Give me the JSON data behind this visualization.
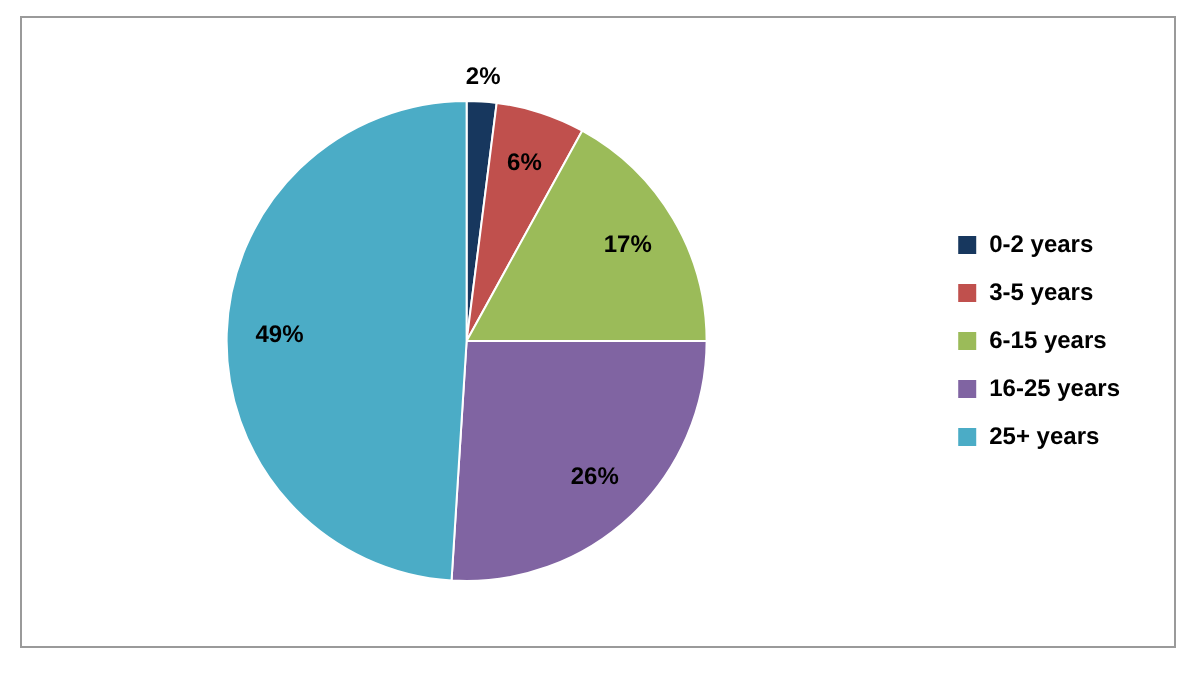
{
  "chart_data": {
    "type": "pie",
    "categories": [
      "0-2 years",
      "3-5 years",
      "6-15 years",
      "16-25 years",
      "25+ years"
    ],
    "values": [
      2,
      6,
      17,
      26,
      49
    ],
    "colors": [
      "#17375e",
      "#c0504d",
      "#9bbb59",
      "#8064a2",
      "#4bacc6"
    ],
    "value_labels": [
      "2%",
      "6%",
      "17%",
      "26%",
      "49%"
    ],
    "legend": "right"
  }
}
